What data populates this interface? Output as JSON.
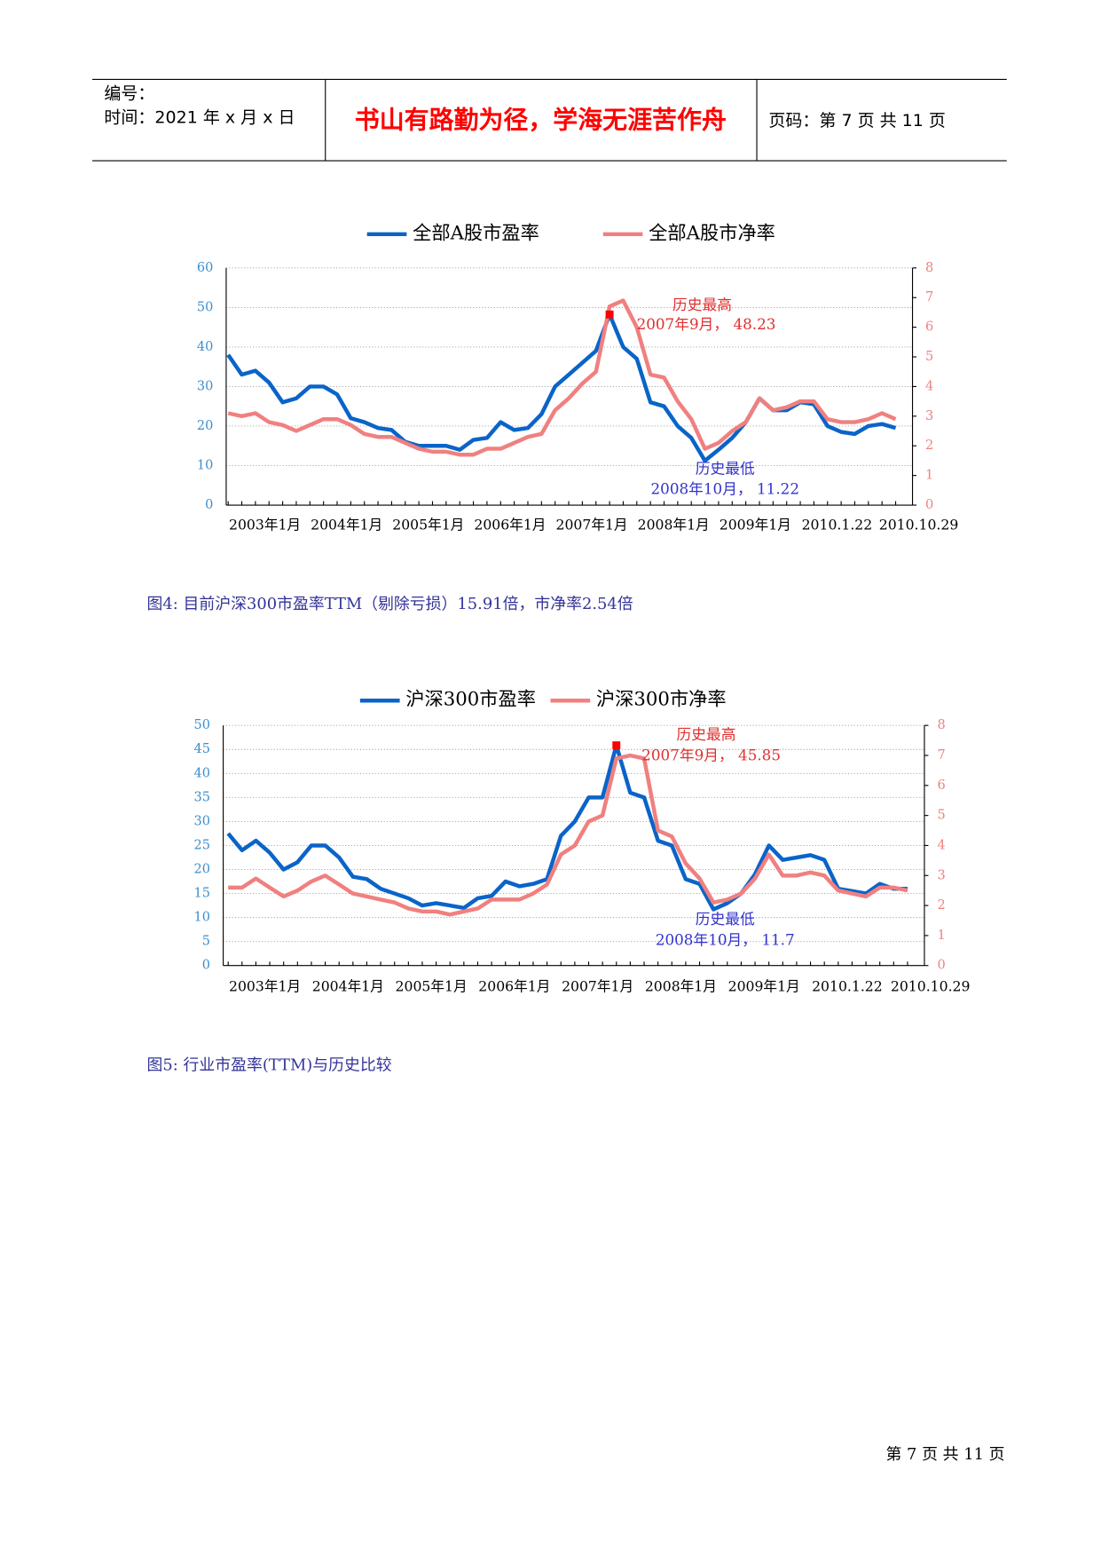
{
  "header": {
    "code": "编号：",
    "time": "时间：2021 年 x 月 x 日",
    "title": "书山有路勤为径，学海无涯苦作舟",
    "page": "页码：第 7 页  共 11 页"
  },
  "chart_data": [
    {
      "type": "line",
      "categories": [
        "2003年1月",
        null,
        null,
        null,
        null,
        null,
        "2004年1月",
        null,
        null,
        null,
        null,
        null,
        "2005年1月",
        null,
        null,
        null,
        null,
        null,
        "2006年1月",
        null,
        null,
        null,
        null,
        null,
        "2007年1月",
        null,
        null,
        null,
        null,
        null,
        "2008年1月",
        null,
        null,
        null,
        null,
        null,
        "2009年1月",
        null,
        null,
        null,
        null,
        null,
        "2010.1.22",
        null,
        null,
        null,
        null,
        null,
        "2010.10.29",
        null
      ],
      "series": [
        {
          "name": "全部A股市盈率",
          "color": "#0a64c8",
          "values": [
            38,
            33,
            34,
            31,
            26,
            27,
            30,
            30,
            28,
            22,
            21,
            19.5,
            19,
            16,
            15,
            15,
            15,
            14,
            16.5,
            17,
            21,
            19,
            19.5,
            23,
            30,
            33,
            36,
            39,
            48.23,
            40,
            37,
            26,
            25,
            20,
            17,
            11.22,
            14,
            17,
            21,
            27,
            24,
            24,
            26,
            25.5,
            20,
            18.5,
            18,
            20,
            20.5,
            19.5
          ]
        },
        {
          "name": "全部A股市净率",
          "color": "#f08080",
          "axis": "y2",
          "values": [
            3.1,
            3.0,
            3.1,
            2.8,
            2.7,
            2.5,
            2.7,
            2.9,
            2.9,
            2.7,
            2.4,
            2.3,
            2.3,
            2.1,
            1.9,
            1.8,
            1.8,
            1.7,
            1.7,
            1.9,
            1.9,
            2.1,
            2.3,
            2.4,
            3.2,
            3.6,
            4.1,
            4.5,
            6.7,
            6.9,
            6.0,
            4.4,
            4.3,
            3.5,
            2.9,
            1.9,
            2.1,
            2.5,
            2.8,
            3.6,
            3.2,
            3.3,
            3.5,
            3.5,
            2.9,
            2.8,
            2.8,
            2.9,
            3.1,
            2.9
          ]
        }
      ],
      "ylim": [
        0,
        60
      ],
      "yticks": [
        0,
        10,
        20,
        30,
        40,
        50,
        60
      ],
      "y2lim": [
        0,
        8
      ],
      "y2ticks": [
        0,
        1,
        2,
        3,
        4,
        5,
        6,
        7,
        8
      ],
      "grid": true,
      "annotations": [
        [
          "历史最高",
          "2007年9月， 48.23"
        ],
        [
          "历史最低",
          "2008年10月， 11.22"
        ]
      ]
    },
    {
      "type": "line",
      "categories": [
        "2003年1月",
        null,
        null,
        null,
        null,
        null,
        "2004年1月",
        null,
        null,
        null,
        null,
        null,
        "2005年1月",
        null,
        null,
        null,
        null,
        null,
        "2006年1月",
        null,
        null,
        null,
        null,
        null,
        "2007年1月",
        null,
        null,
        null,
        null,
        null,
        "2008年1月",
        null,
        null,
        null,
        null,
        null,
        "2009年1月",
        null,
        null,
        null,
        null,
        null,
        "2010.1.22",
        null,
        null,
        null,
        null,
        null,
        "2010.10.29",
        null
      ],
      "series": [
        {
          "name": "沪深300市盈率",
          "color": "#0a64c8",
          "values": [
            27.5,
            24,
            26,
            23.5,
            20,
            21.5,
            25,
            25,
            22.5,
            18.5,
            18,
            16,
            15,
            14,
            12.5,
            13,
            12.5,
            12,
            14,
            14.5,
            17.5,
            16.5,
            17,
            18,
            27,
            30,
            35,
            35,
            45.85,
            36,
            35,
            26,
            25,
            18,
            17,
            11.7,
            13,
            15,
            19,
            25,
            22,
            22.5,
            23,
            22,
            16,
            15.5,
            15,
            17,
            16,
            16
          ]
        },
        {
          "name": "沪深300市净率",
          "color": "#f08080",
          "axis": "y2",
          "values": [
            2.6,
            2.6,
            2.9,
            2.6,
            2.3,
            2.5,
            2.8,
            3.0,
            2.7,
            2.4,
            2.3,
            2.2,
            2.1,
            1.9,
            1.8,
            1.8,
            1.7,
            1.8,
            1.9,
            2.2,
            2.2,
            2.2,
            2.4,
            2.7,
            3.7,
            4.0,
            4.8,
            5.0,
            6.9,
            7.0,
            6.9,
            4.5,
            4.3,
            3.4,
            2.9,
            2.1,
            2.2,
            2.4,
            2.9,
            3.7,
            3.0,
            3.0,
            3.1,
            3.0,
            2.5,
            2.4,
            2.3,
            2.6,
            2.6,
            2.5
          ]
        }
      ],
      "ylim": [
        0,
        50
      ],
      "yticks": [
        0,
        5,
        10,
        15,
        20,
        25,
        30,
        35,
        40,
        45,
        50
      ],
      "y2lim": [
        0,
        8
      ],
      "y2ticks": [
        0,
        1,
        2,
        3,
        4,
        5,
        6,
        7,
        8
      ],
      "grid": true,
      "annotations": [
        [
          "历史最高",
          "2007年9月， 45.85"
        ],
        [
          "历史最低",
          "2008年10月， 11.7"
        ]
      ]
    }
  ],
  "captions": [
    "图4: 目前沪深300市盈率TTM（剔除亏损）15.91倍，市净率2.54倍",
    "图5: 行业市盈率(TTM)与历史比较"
  ],
  "footer": "第 7 页 共 11 页"
}
